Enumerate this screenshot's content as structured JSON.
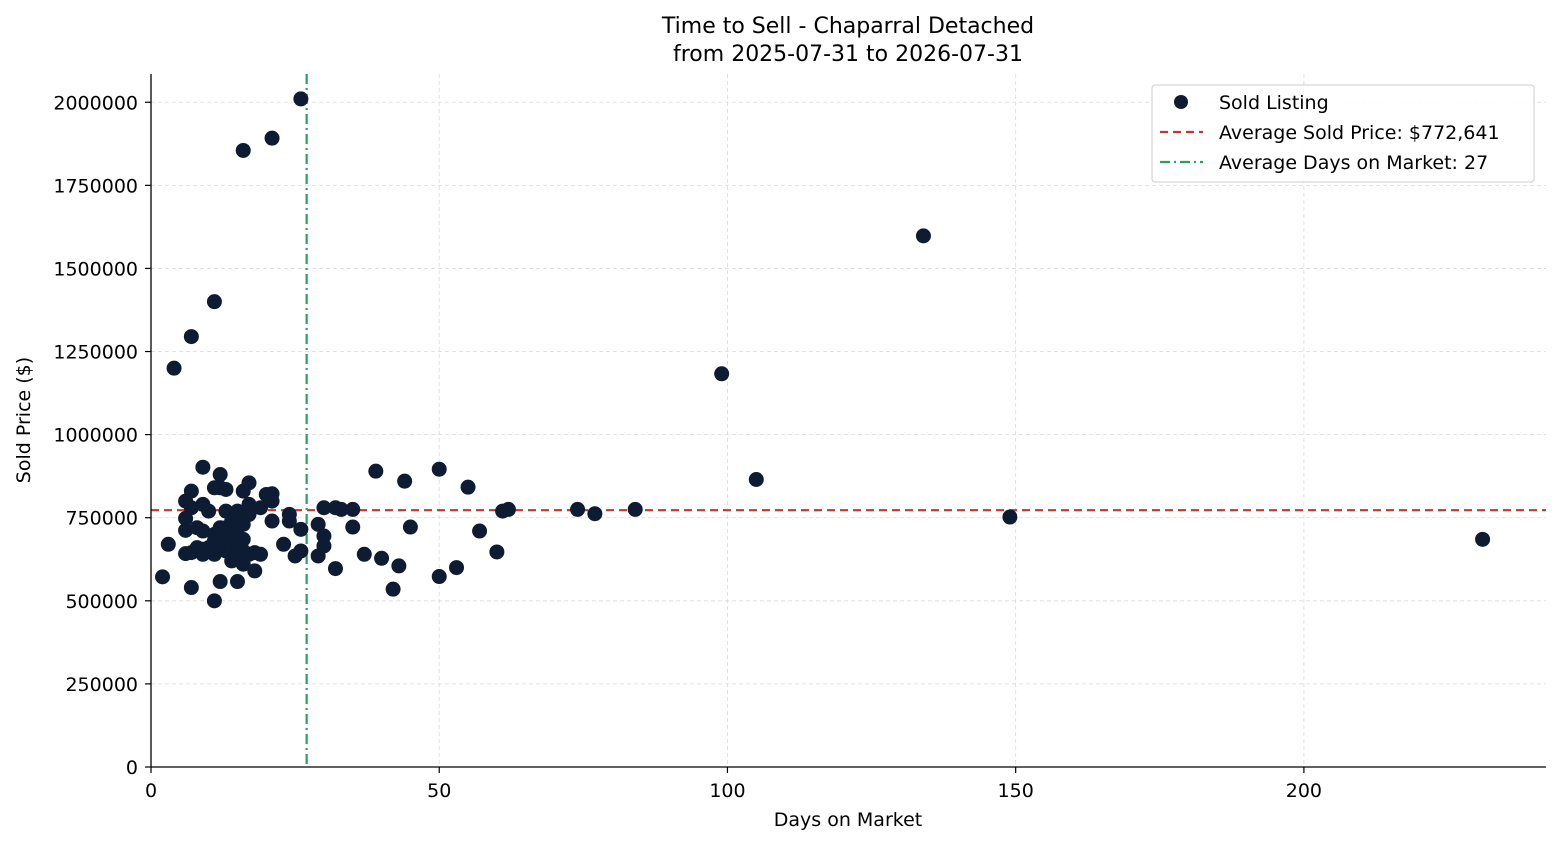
{
  "chart_data": {
    "type": "scatter",
    "title": "Time to Sell - Chaparral Detached",
    "subtitle": "from 2025-07-31 to 2026-07-31",
    "xlabel": "Days on Market",
    "ylabel": "Sold Price ($)",
    "xlim": [
      0,
      242
    ],
    "ylim": [
      0,
      2085000
    ],
    "xticks": [
      0,
      50,
      100,
      150,
      200
    ],
    "yticks": [
      0,
      250000,
      500000,
      750000,
      1000000,
      1250000,
      1500000,
      1750000,
      2000000
    ],
    "grid": true,
    "legend_position": "top-right",
    "colors": {
      "points": "#0d1b33",
      "avg_price": "#c0392b",
      "avg_days": "#27a35a"
    },
    "series": [
      {
        "name": "Sold Listing",
        "points": [
          [
            2,
            572000
          ],
          [
            3,
            670000
          ],
          [
            4,
            1200000
          ],
          [
            6,
            642000
          ],
          [
            6,
            712000
          ],
          [
            6,
            748000
          ],
          [
            6,
            800000
          ],
          [
            7,
            1295000
          ],
          [
            7,
            830000
          ],
          [
            7,
            540000
          ],
          [
            7,
            645000
          ],
          [
            7,
            780000
          ],
          [
            8,
            660000
          ],
          [
            8,
            720000
          ],
          [
            9,
            902000
          ],
          [
            9,
            790000
          ],
          [
            9,
            710000
          ],
          [
            9,
            640000
          ],
          [
            9,
            655000
          ],
          [
            10,
            770000
          ],
          [
            10,
            660000
          ],
          [
            11,
            1400000
          ],
          [
            11,
            840000
          ],
          [
            11,
            500000
          ],
          [
            11,
            680000
          ],
          [
            11,
            640000
          ],
          [
            11,
            700000
          ],
          [
            12,
            880000
          ],
          [
            12,
            840000
          ],
          [
            12,
            720000
          ],
          [
            12,
            558000
          ],
          [
            12,
            660000
          ],
          [
            12,
            700000
          ],
          [
            13,
            835000
          ],
          [
            13,
            770000
          ],
          [
            13,
            680000
          ],
          [
            13,
            650000
          ],
          [
            13,
            720000
          ],
          [
            14,
            740000
          ],
          [
            14,
            690000
          ],
          [
            14,
            660000
          ],
          [
            14,
            620000
          ],
          [
            14,
            700000
          ],
          [
            15,
            770000
          ],
          [
            15,
            720000
          ],
          [
            15,
            640000
          ],
          [
            15,
            558000
          ],
          [
            15,
            680000
          ],
          [
            16,
            1855000
          ],
          [
            16,
            830000
          ],
          [
            16,
            730000
          ],
          [
            16,
            685000
          ],
          [
            16,
            610000
          ],
          [
            16,
            650000
          ],
          [
            17,
            855000
          ],
          [
            17,
            790000
          ],
          [
            17,
            760000
          ],
          [
            17,
            640000
          ],
          [
            18,
            590000
          ],
          [
            18,
            645000
          ],
          [
            19,
            640000
          ],
          [
            19,
            780000
          ],
          [
            20,
            820000
          ],
          [
            21,
            1892000
          ],
          [
            21,
            822000
          ],
          [
            21,
            800000
          ],
          [
            21,
            740000
          ],
          [
            23,
            670000
          ],
          [
            24,
            760000
          ],
          [
            24,
            740000
          ],
          [
            25,
            635000
          ],
          [
            26,
            2010000
          ],
          [
            26,
            715000
          ],
          [
            26,
            650000
          ],
          [
            29,
            730000
          ],
          [
            29,
            635000
          ],
          [
            30,
            780000
          ],
          [
            30,
            695000
          ],
          [
            30,
            665000
          ],
          [
            32,
            780000
          ],
          [
            32,
            597000
          ],
          [
            33,
            775000
          ],
          [
            35,
            775000
          ],
          [
            35,
            722000
          ],
          [
            37,
            640000
          ],
          [
            39,
            890000
          ],
          [
            40,
            628000
          ],
          [
            42,
            535000
          ],
          [
            43,
            605000
          ],
          [
            44,
            860000
          ],
          [
            45,
            722000
          ],
          [
            50,
            896000
          ],
          [
            50,
            573000
          ],
          [
            53,
            600000
          ],
          [
            55,
            842000
          ],
          [
            57,
            710000
          ],
          [
            60,
            647000
          ],
          [
            61,
            770000
          ],
          [
            62,
            775000
          ],
          [
            74,
            775000
          ],
          [
            77,
            762000
          ],
          [
            84,
            775000
          ],
          [
            99,
            1183000
          ],
          [
            105,
            865000
          ],
          [
            134,
            1598000
          ],
          [
            149,
            752000
          ],
          [
            231,
            685000
          ]
        ]
      },
      {
        "name": "Average Sold Price: $772,641",
        "value": 772641
      },
      {
        "name": "Average Days on Market: 27",
        "value": 27
      }
    ]
  }
}
